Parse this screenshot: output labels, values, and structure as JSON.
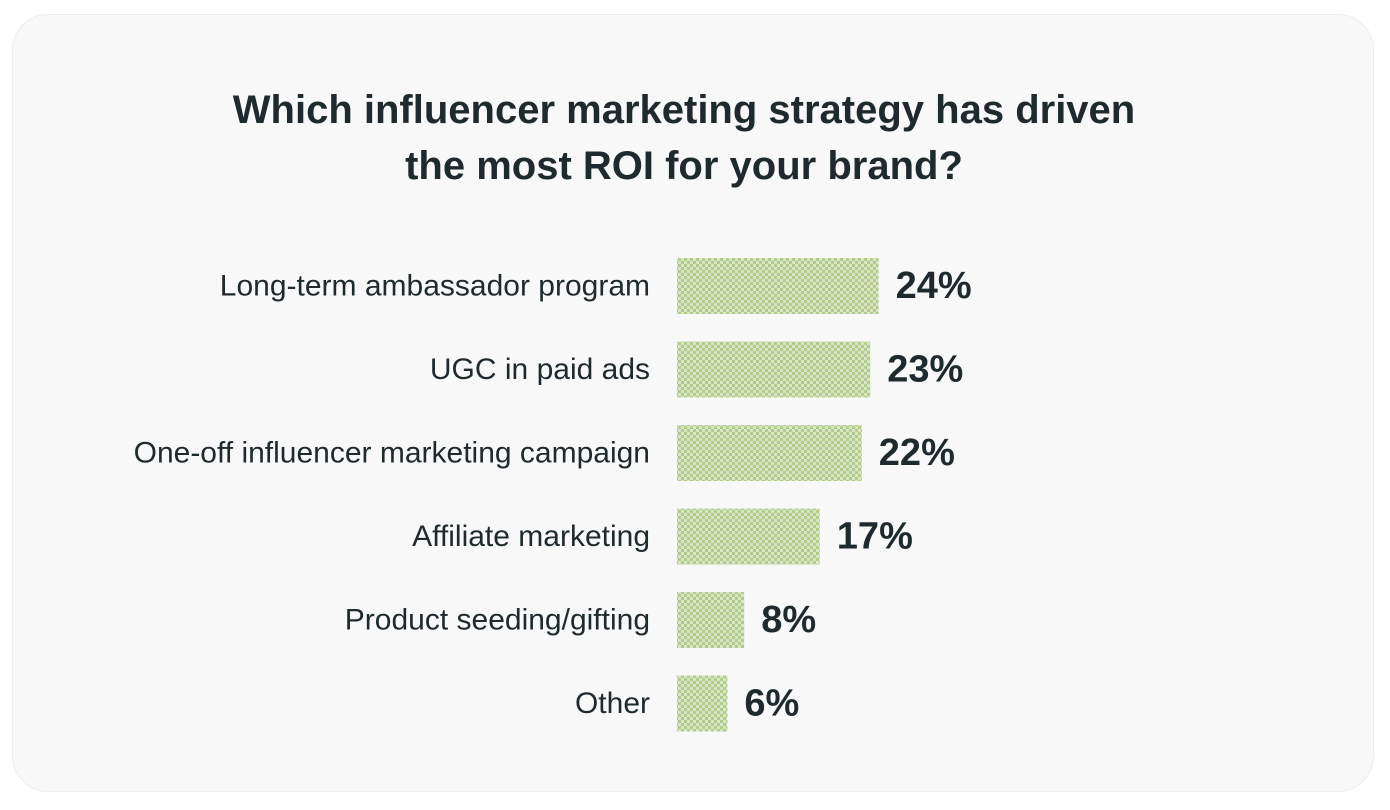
{
  "chart_data": {
    "type": "bar",
    "orientation": "horizontal",
    "title_lines": [
      "Which influencer marketing strategy has driven",
      "the most ROI for your brand?"
    ],
    "categories": [
      "Long-term ambassador program",
      "UGC in paid ads",
      "One-off influencer marketing campaign",
      "Affiliate marketing",
      "Product seeding/gifting",
      "Other"
    ],
    "values": [
      24,
      23,
      22,
      17,
      8,
      6
    ],
    "value_labels": [
      "24%",
      "23%",
      "22%",
      "17%",
      "8%",
      "6%"
    ],
    "unit": "%",
    "grid": false,
    "legend": "none",
    "colors": {
      "bar_light": "#d9e6c4",
      "bar_dark": "#b3cc8e",
      "text": "#1f2a2e",
      "card_background": "#f8f8f8"
    }
  }
}
